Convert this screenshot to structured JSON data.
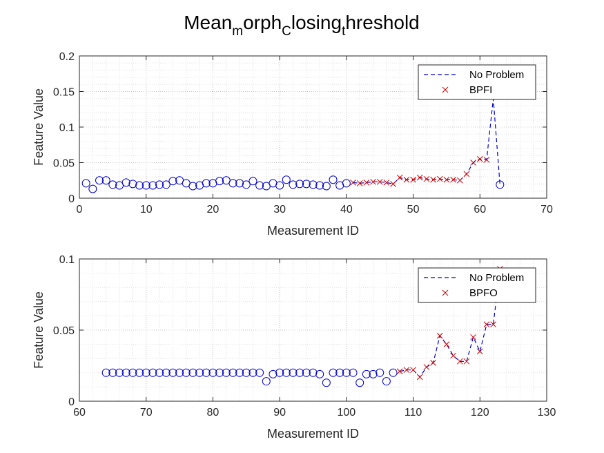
{
  "figure": {
    "title_parts": [
      {
        "text": "Mean",
        "sub": false
      },
      {
        "text": "m",
        "sub": true
      },
      {
        "text": "orph",
        "sub": false
      },
      {
        "text": "C",
        "sub": true
      },
      {
        "text": "losing",
        "sub": false
      },
      {
        "text": "t",
        "sub": true
      },
      {
        "text": "hreshold",
        "sub": false
      }
    ]
  },
  "colors": {
    "normal": "#0000cc",
    "fault": "#cc0000",
    "dashed_line": "#0000cc",
    "grid": "#c8c8c8",
    "axes": "#262626"
  },
  "chart_data": [
    {
      "type": "scatter",
      "xlabel": "Measurement ID",
      "ylabel": "Feature Value",
      "xlim": [
        0,
        70
      ],
      "ylim": [
        0,
        0.2
      ],
      "xticks": [
        0,
        10,
        20,
        30,
        40,
        50,
        60,
        70
      ],
      "yticks": [
        0,
        0.05,
        0.1,
        0.15,
        0.2
      ],
      "ytick_labels": [
        "0",
        "0.05",
        "0.1",
        "0.15",
        "0.2"
      ],
      "grid": "on (with minor grid)",
      "legend_position": "top-right",
      "legend": [
        {
          "label": "No Problem",
          "marker": "dashed-line",
          "color": "#0000cc"
        },
        {
          "label": "BPFI",
          "marker": "x",
          "color": "#cc0000"
        }
      ],
      "line_series": {
        "name": "No Problem",
        "x": [
          41,
          42,
          43,
          44,
          45,
          46,
          47,
          48,
          49,
          50,
          51,
          52,
          53,
          54,
          55,
          56,
          57,
          58,
          59,
          60,
          61,
          62,
          63
        ],
        "y": [
          0.022,
          0.021,
          0.022,
          0.023,
          0.023,
          0.022,
          0.02,
          0.029,
          0.026,
          0.026,
          0.029,
          0.027,
          0.026,
          0.027,
          0.026,
          0.026,
          0.025,
          0.034,
          0.05,
          0.055,
          0.054,
          0.14,
          0.019
        ]
      },
      "series": [
        {
          "name": "No Problem",
          "marker": "circle",
          "x": [
            1,
            2,
            3,
            4,
            5,
            6,
            7,
            8,
            9,
            10,
            11,
            12,
            13,
            14,
            15,
            16,
            17,
            18,
            19,
            20,
            21,
            22,
            23,
            24,
            25,
            26,
            27,
            28,
            29,
            30,
            31,
            32,
            33,
            34,
            35,
            36,
            37,
            38,
            39,
            40,
            63
          ],
          "y": [
            0.021,
            0.013,
            0.025,
            0.025,
            0.019,
            0.018,
            0.022,
            0.02,
            0.018,
            0.018,
            0.018,
            0.019,
            0.019,
            0.024,
            0.025,
            0.021,
            0.017,
            0.018,
            0.021,
            0.021,
            0.024,
            0.025,
            0.021,
            0.021,
            0.019,
            0.024,
            0.018,
            0.017,
            0.021,
            0.018,
            0.026,
            0.019,
            0.02,
            0.02,
            0.019,
            0.018,
            0.017,
            0.026,
            0.018,
            0.021,
            0.019
          ]
        },
        {
          "name": "BPFI",
          "marker": "x",
          "x": [
            41,
            42,
            43,
            44,
            45,
            46,
            47,
            48,
            49,
            50,
            51,
            52,
            53,
            54,
            55,
            56,
            57,
            58,
            59,
            60,
            61
          ],
          "y": [
            0.022,
            0.021,
            0.022,
            0.023,
            0.023,
            0.022,
            0.02,
            0.029,
            0.026,
            0.026,
            0.029,
            0.027,
            0.026,
            0.027,
            0.026,
            0.026,
            0.025,
            0.034,
            0.05,
            0.055,
            0.054
          ]
        }
      ]
    },
    {
      "type": "scatter",
      "xlabel": "Measurement ID",
      "ylabel": "Feature Value",
      "xlim": [
        60,
        130
      ],
      "ylim": [
        0,
        0.1
      ],
      "xticks": [
        60,
        70,
        80,
        90,
        100,
        110,
        120,
        130
      ],
      "yticks": [
        0,
        0.05,
        0.1
      ],
      "ytick_labels": [
        "0",
        "0.05",
        "0.1"
      ],
      "grid": "on (with minor grid)",
      "legend_position": "top-right",
      "legend": [
        {
          "label": "No Problem",
          "marker": "dashed-line",
          "color": "#0000cc"
        },
        {
          "label": "BPFO",
          "marker": "x",
          "color": "#cc0000"
        }
      ],
      "line_series": {
        "name": "No Problem",
        "x": [
          108,
          109,
          110,
          111,
          112,
          113,
          114,
          115,
          116,
          117,
          118,
          119,
          120,
          121,
          122,
          123
        ],
        "y": [
          0.021,
          0.022,
          0.022,
          0.017,
          0.024,
          0.027,
          0.046,
          0.04,
          0.032,
          0.028,
          0.028,
          0.045,
          0.035,
          0.054,
          0.054,
          0.093
        ]
      },
      "series": [
        {
          "name": "No Problem",
          "marker": "circle",
          "x": [
            64,
            65,
            66,
            67,
            68,
            69,
            70,
            71,
            72,
            73,
            74,
            75,
            76,
            77,
            78,
            79,
            80,
            81,
            82,
            83,
            84,
            85,
            86,
            87,
            88,
            89,
            90,
            91,
            92,
            93,
            94,
            95,
            96,
            97,
            98,
            99,
            100,
            101,
            102,
            103,
            104,
            105,
            106,
            107
          ],
          "y": [
            0.02,
            0.02,
            0.02,
            0.02,
            0.02,
            0.02,
            0.02,
            0.02,
            0.02,
            0.02,
            0.02,
            0.02,
            0.02,
            0.02,
            0.02,
            0.02,
            0.02,
            0.02,
            0.02,
            0.02,
            0.02,
            0.02,
            0.02,
            0.02,
            0.014,
            0.019,
            0.02,
            0.02,
            0.02,
            0.02,
            0.02,
            0.02,
            0.019,
            0.013,
            0.02,
            0.02,
            0.02,
            0.02,
            0.013,
            0.019,
            0.019,
            0.02,
            0.014,
            0.02
          ]
        },
        {
          "name": "BPFO",
          "marker": "x",
          "x": [
            108,
            109,
            110,
            111,
            112,
            113,
            114,
            115,
            116,
            117,
            118,
            119,
            120,
            121,
            122,
            123
          ],
          "y": [
            0.021,
            0.022,
            0.022,
            0.017,
            0.024,
            0.027,
            0.046,
            0.04,
            0.032,
            0.028,
            0.028,
            0.045,
            0.035,
            0.054,
            0.054,
            0.093
          ]
        }
      ]
    }
  ]
}
